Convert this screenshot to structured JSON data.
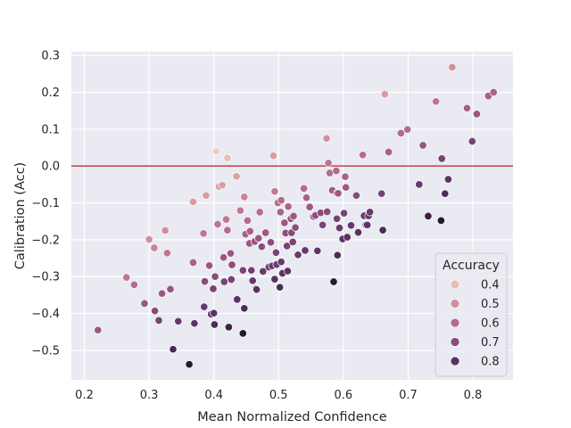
{
  "chart_data": {
    "type": "scatter",
    "xlabel": "Mean Normalized Confidence",
    "ylabel": "Calibration (Acc)",
    "xlim": [
      0.18,
      0.862
    ],
    "ylim": [
      -0.58,
      0.31
    ],
    "xticks": [
      0.2,
      0.3,
      0.4,
      0.5,
      0.6,
      0.7,
      0.8
    ],
    "yticks": [
      0.3,
      0.2,
      0.1,
      0.0,
      -0.1,
      -0.2,
      -0.3,
      -0.4,
      -0.5
    ],
    "xtick_labels": [
      "0.2",
      "0.3",
      "0.4",
      "0.5",
      "0.6",
      "0.7",
      "0.8"
    ],
    "ytick_labels": [
      "0.3",
      "0.2",
      "0.1",
      "0.0",
      "−0.1",
      "−0.2",
      "−0.3",
      "−0.4",
      "−0.5"
    ],
    "grid": true,
    "reference_line": {
      "y": 0.0,
      "color": "#c44e52"
    },
    "hue": "Accuracy",
    "legend": {
      "title": "Accuracy",
      "position": "lower-right",
      "entries": [
        {
          "label": "0.4",
          "value": 0.4
        },
        {
          "label": "0.5",
          "value": 0.5
        },
        {
          "label": "0.6",
          "value": 0.6
        },
        {
          "label": "0.7",
          "value": 0.7
        },
        {
          "label": "0.8",
          "value": 0.8
        }
      ]
    },
    "colors": {
      "background": "#eaeaf2",
      "grid": "#ffffff",
      "hue_light": "#edc0b4",
      "hue_dark": "#2e1e3b"
    },
    "points": [
      {
        "x": 0.221,
        "y": -0.445,
        "acc": 0.661
      },
      {
        "x": 0.265,
        "y": -0.302,
        "acc": 0.565
      },
      {
        "x": 0.277,
        "y": -0.322,
        "acc": 0.601
      },
      {
        "x": 0.293,
        "y": -0.373,
        "acc": 0.666
      },
      {
        "x": 0.3,
        "y": -0.199,
        "acc": 0.502
      },
      {
        "x": 0.308,
        "y": -0.222,
        "acc": 0.53
      },
      {
        "x": 0.309,
        "y": -0.393,
        "acc": 0.702
      },
      {
        "x": 0.315,
        "y": -0.419,
        "acc": 0.734
      },
      {
        "x": 0.32,
        "y": -0.346,
        "acc": 0.666
      },
      {
        "x": 0.325,
        "y": -0.175,
        "acc": 0.501
      },
      {
        "x": 0.328,
        "y": -0.236,
        "acc": 0.564
      },
      {
        "x": 0.333,
        "y": -0.334,
        "acc": 0.667
      },
      {
        "x": 0.337,
        "y": -0.497,
        "acc": 0.84
      },
      {
        "x": 0.345,
        "y": -0.421,
        "acc": 0.766
      },
      {
        "x": 0.362,
        "y": -0.538,
        "acc": 0.9
      },
      {
        "x": 0.368,
        "y": -0.262,
        "acc": 0.63
      },
      {
        "x": 0.368,
        "y": -0.097,
        "acc": 0.471
      },
      {
        "x": 0.37,
        "y": -0.427,
        "acc": 0.797
      },
      {
        "x": 0.384,
        "y": -0.183,
        "acc": 0.567
      },
      {
        "x": 0.385,
        "y": -0.382,
        "acc": 0.767
      },
      {
        "x": 0.386,
        "y": -0.313,
        "acc": 0.699
      },
      {
        "x": 0.388,
        "y": -0.08,
        "acc": 0.468
      },
      {
        "x": 0.393,
        "y": -0.27,
        "acc": 0.663
      },
      {
        "x": 0.396,
        "y": -0.402,
        "acc": 0.798
      },
      {
        "x": 0.399,
        "y": -0.333,
        "acc": 0.732
      },
      {
        "x": 0.4,
        "y": -0.399,
        "acc": 0.799
      },
      {
        "x": 0.401,
        "y": -0.43,
        "acc": 0.831
      },
      {
        "x": 0.402,
        "y": -0.3,
        "acc": 0.702
      },
      {
        "x": 0.404,
        "y": 0.04,
        "acc": 0.364
      },
      {
        "x": 0.406,
        "y": -0.158,
        "acc": 0.564
      },
      {
        "x": 0.408,
        "y": -0.056,
        "acc": 0.464
      },
      {
        "x": 0.413,
        "y": -0.052,
        "acc": 0.465
      },
      {
        "x": 0.415,
        "y": -0.248,
        "acc": 0.663
      },
      {
        "x": 0.416,
        "y": -0.314,
        "acc": 0.73
      },
      {
        "x": 0.419,
        "y": -0.145,
        "acc": 0.564
      },
      {
        "x": 0.421,
        "y": 0.022,
        "acc": 0.399
      },
      {
        "x": 0.421,
        "y": -0.174,
        "acc": 0.595
      },
      {
        "x": 0.423,
        "y": -0.437,
        "acc": 0.86
      },
      {
        "x": 0.426,
        "y": -0.237,
        "acc": 0.663
      },
      {
        "x": 0.427,
        "y": -0.308,
        "acc": 0.735
      },
      {
        "x": 0.428,
        "y": -0.268,
        "acc": 0.696
      },
      {
        "x": 0.435,
        "y": -0.028,
        "acc": 0.463
      },
      {
        "x": 0.436,
        "y": -0.362,
        "acc": 0.798
      },
      {
        "x": 0.441,
        "y": -0.121,
        "acc": 0.562
      },
      {
        "x": 0.445,
        "y": -0.454,
        "acc": 0.899
      },
      {
        "x": 0.445,
        "y": -0.283,
        "acc": 0.728
      },
      {
        "x": 0.447,
        "y": -0.084,
        "acc": 0.531
      },
      {
        "x": 0.447,
        "y": -0.386,
        "acc": 0.833
      },
      {
        "x": 0.449,
        "y": -0.185,
        "acc": 0.634
      },
      {
        "x": 0.452,
        "y": -0.148,
        "acc": 0.6
      },
      {
        "x": 0.455,
        "y": -0.21,
        "acc": 0.665
      },
      {
        "x": 0.456,
        "y": -0.177,
        "acc": 0.633
      },
      {
        "x": 0.458,
        "y": -0.283,
        "acc": 0.741
      },
      {
        "x": 0.46,
        "y": -0.311,
        "acc": 0.771
      },
      {
        "x": 0.463,
        "y": -0.205,
        "acc": 0.668
      },
      {
        "x": 0.465,
        "y": -0.333,
        "acc": 0.798
      },
      {
        "x": 0.466,
        "y": -0.335,
        "acc": 0.801
      },
      {
        "x": 0.469,
        "y": -0.196,
        "acc": 0.665
      },
      {
        "x": 0.471,
        "y": -0.125,
        "acc": 0.596
      },
      {
        "x": 0.474,
        "y": -0.219,
        "acc": 0.693
      },
      {
        "x": 0.476,
        "y": -0.286,
        "acc": 0.762
      },
      {
        "x": 0.48,
        "y": -0.181,
        "acc": 0.661
      },
      {
        "x": 0.485,
        "y": -0.274,
        "acc": 0.759
      },
      {
        "x": 0.488,
        "y": -0.207,
        "acc": 0.695
      },
      {
        "x": 0.49,
        "y": -0.271,
        "acc": 0.761
      },
      {
        "x": 0.492,
        "y": 0.028,
        "acc": 0.464
      },
      {
        "x": 0.494,
        "y": -0.069,
        "acc": 0.563
      },
      {
        "x": 0.494,
        "y": -0.307,
        "acc": 0.801
      },
      {
        "x": 0.496,
        "y": -0.235,
        "acc": 0.731
      },
      {
        "x": 0.497,
        "y": -0.267,
        "acc": 0.764
      },
      {
        "x": 0.499,
        "y": -0.1,
        "acc": 0.599
      },
      {
        "x": 0.502,
        "y": -0.329,
        "acc": 0.831
      },
      {
        "x": 0.503,
        "y": -0.125,
        "acc": 0.628
      },
      {
        "x": 0.504,
        "y": -0.093,
        "acc": 0.597
      },
      {
        "x": 0.504,
        "y": -0.26,
        "acc": 0.764
      },
      {
        "x": 0.506,
        "y": -0.291,
        "acc": 0.797
      },
      {
        "x": 0.509,
        "y": -0.154,
        "acc": 0.663
      },
      {
        "x": 0.511,
        "y": -0.182,
        "acc": 0.693
      },
      {
        "x": 0.513,
        "y": -0.217,
        "acc": 0.73
      },
      {
        "x": 0.514,
        "y": -0.285,
        "acc": 0.799
      },
      {
        "x": 0.515,
        "y": -0.11,
        "acc": 0.625
      },
      {
        "x": 0.519,
        "y": -0.143,
        "acc": 0.662
      },
      {
        "x": 0.52,
        "y": -0.181,
        "acc": 0.701
      },
      {
        "x": 0.522,
        "y": -0.206,
        "acc": 0.728
      },
      {
        "x": 0.523,
        "y": -0.136,
        "acc": 0.659
      },
      {
        "x": 0.526,
        "y": -0.167,
        "acc": 0.693
      },
      {
        "x": 0.53,
        "y": -0.241,
        "acc": 0.771
      },
      {
        "x": 0.539,
        "y": -0.061,
        "acc": 0.6
      },
      {
        "x": 0.541,
        "y": -0.229,
        "acc": 0.77
      },
      {
        "x": 0.543,
        "y": -0.086,
        "acc": 0.629
      },
      {
        "x": 0.548,
        "y": -0.111,
        "acc": 0.659
      },
      {
        "x": 0.554,
        "y": -0.137,
        "acc": 0.691
      },
      {
        "x": 0.557,
        "y": -0.134,
        "acc": 0.691
      },
      {
        "x": 0.56,
        "y": -0.23,
        "acc": 0.79
      },
      {
        "x": 0.565,
        "y": -0.127,
        "acc": 0.692
      },
      {
        "x": 0.568,
        "y": -0.16,
        "acc": 0.728
      },
      {
        "x": 0.574,
        "y": 0.075,
        "acc": 0.499
      },
      {
        "x": 0.575,
        "y": -0.124,
        "acc": 0.699
      },
      {
        "x": 0.577,
        "y": 0.008,
        "acc": 0.569
      },
      {
        "x": 0.579,
        "y": -0.019,
        "acc": 0.598
      },
      {
        "x": 0.583,
        "y": -0.066,
        "acc": 0.649
      },
      {
        "x": 0.585,
        "y": -0.314,
        "acc": 0.899
      },
      {
        "x": 0.589,
        "y": -0.013,
        "acc": 0.602
      },
      {
        "x": 0.59,
        "y": -0.143,
        "acc": 0.733
      },
      {
        "x": 0.59,
        "y": -0.074,
        "acc": 0.664
      },
      {
        "x": 0.591,
        "y": -0.242,
        "acc": 0.833
      },
      {
        "x": 0.592,
        "y": -0.074,
        "acc": 0.666
      },
      {
        "x": 0.594,
        "y": -0.168,
        "acc": 0.762
      },
      {
        "x": 0.599,
        "y": -0.198,
        "acc": 0.797
      },
      {
        "x": 0.601,
        "y": -0.128,
        "acc": 0.729
      },
      {
        "x": 0.603,
        "y": -0.029,
        "acc": 0.632
      },
      {
        "x": 0.604,
        "y": -0.058,
        "acc": 0.662
      },
      {
        "x": 0.606,
        "y": -0.193,
        "acc": 0.799
      },
      {
        "x": 0.612,
        "y": -0.161,
        "acc": 0.773
      },
      {
        "x": 0.62,
        "y": -0.08,
        "acc": 0.7
      },
      {
        "x": 0.623,
        "y": -0.18,
        "acc": 0.803
      },
      {
        "x": 0.63,
        "y": 0.03,
        "acc": 0.6
      },
      {
        "x": 0.632,
        "y": -0.135,
        "acc": 0.767
      },
      {
        "x": 0.635,
        "y": -0.16,
        "acc": 0.795
      },
      {
        "x": 0.637,
        "y": -0.16,
        "acc": 0.797
      },
      {
        "x": 0.639,
        "y": -0.135,
        "acc": 0.774
      },
      {
        "x": 0.641,
        "y": -0.125,
        "acc": 0.766
      },
      {
        "x": 0.659,
        "y": -0.075,
        "acc": 0.734
      },
      {
        "x": 0.661,
        "y": -0.174,
        "acc": 0.835
      },
      {
        "x": 0.664,
        "y": 0.195,
        "acc": 0.469
      },
      {
        "x": 0.67,
        "y": 0.038,
        "acc": 0.632
      },
      {
        "x": 0.689,
        "y": 0.089,
        "acc": 0.6
      },
      {
        "x": 0.699,
        "y": 0.099,
        "acc": 0.6
      },
      {
        "x": 0.717,
        "y": -0.05,
        "acc": 0.767
      },
      {
        "x": 0.723,
        "y": 0.056,
        "acc": 0.667
      },
      {
        "x": 0.731,
        "y": -0.136,
        "acc": 0.867
      },
      {
        "x": 0.743,
        "y": 0.175,
        "acc": 0.568
      },
      {
        "x": 0.751,
        "y": -0.148,
        "acc": 0.899
      },
      {
        "x": 0.752,
        "y": 0.02,
        "acc": 0.732
      },
      {
        "x": 0.757,
        "y": -0.075,
        "acc": 0.832
      },
      {
        "x": 0.762,
        "y": -0.036,
        "acc": 0.798
      },
      {
        "x": 0.768,
        "y": 0.268,
        "acc": 0.5
      },
      {
        "x": 0.791,
        "y": 0.157,
        "acc": 0.634
      },
      {
        "x": 0.799,
        "y": 0.067,
        "acc": 0.732
      },
      {
        "x": 0.806,
        "y": 0.141,
        "acc": 0.665
      },
      {
        "x": 0.824,
        "y": 0.19,
        "acc": 0.634
      },
      {
        "x": 0.832,
        "y": 0.2,
        "acc": 0.632
      }
    ]
  }
}
